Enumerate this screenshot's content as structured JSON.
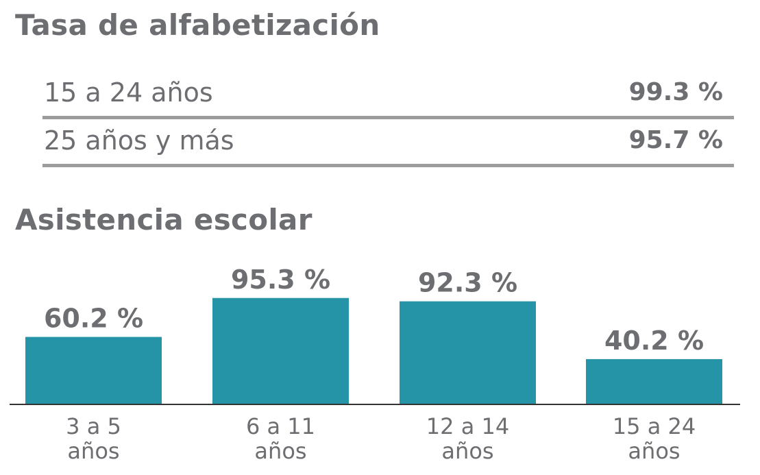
{
  "literacy": {
    "title": "Tasa de alfabetización",
    "rows": [
      {
        "label": "15 a 24 años",
        "value": "99.3 %"
      },
      {
        "label": "25 años y más",
        "value": "95.7 %"
      }
    ]
  },
  "attendance": {
    "title": "Asistencia escolar"
  },
  "chart_data": {
    "type": "bar",
    "title": "Asistencia escolar",
    "categories": [
      [
        "3 a 5",
        "años"
      ],
      [
        "6 a 11",
        "años"
      ],
      [
        "12 a 14",
        "años"
      ],
      [
        "15 a 24",
        "años"
      ]
    ],
    "values": [
      60.2,
      95.3,
      92.3,
      40.2
    ],
    "value_labels": [
      "60.2 %",
      "95.3 %",
      "92.3 %",
      "40.2 %"
    ],
    "xlabel": "",
    "ylabel": "",
    "ylim": [
      0,
      100
    ],
    "grid": false,
    "legend": "none",
    "bar_color": "#2494a6",
    "axis_color": "#333333",
    "text_color": "#6d6e71"
  }
}
